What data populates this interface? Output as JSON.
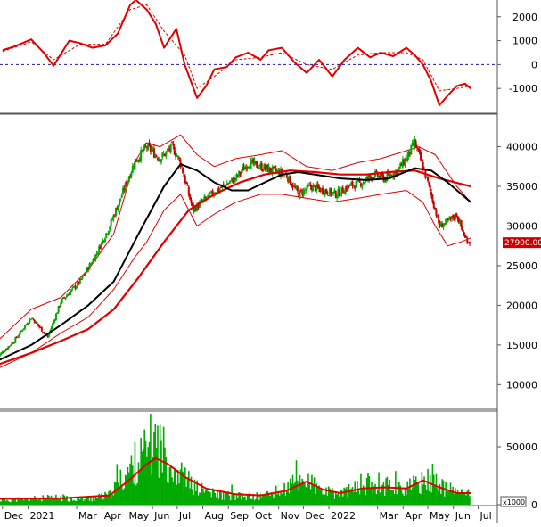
{
  "colors": {
    "up": "#00aa00",
    "down": "#cc0000",
    "ma_slow": "#e00000",
    "ma_fast": "#000000",
    "bollinger": "#dd0000",
    "volume_bar": "#00aa00",
    "volume_ma": "#e00000",
    "price_tag_bg": "#cc0000",
    "price_tag_text": "#ffffff"
  },
  "chart_data": [
    {
      "type": "line",
      "panel": "indicator",
      "y_ticks": [
        2000,
        1000,
        0,
        -1000
      ],
      "y_tick_labels": [
        "2000",
        "1000",
        "0",
        "-1000"
      ],
      "ylim": [
        -2000,
        2700
      ],
      "zero_line": "dashed",
      "series": [
        {
          "style": "solid",
          "x": [
            "2020-12-01",
            "2020-12-15",
            "2021-01-05",
            "2021-01-20",
            "2021-02-01",
            "2021-02-20",
            "2021-03-05",
            "2021-03-20",
            "2021-04-05",
            "2021-04-20",
            "2021-05-05",
            "2021-05-12",
            "2021-05-25",
            "2021-06-05",
            "2021-06-15",
            "2021-06-30",
            "2021-07-10",
            "2021-07-25",
            "2021-08-05",
            "2021-08-15",
            "2021-08-30",
            "2021-09-10",
            "2021-09-25",
            "2021-10-10",
            "2021-10-20",
            "2021-11-05",
            "2021-11-20",
            "2021-12-05",
            "2021-12-20",
            "2022-01-05",
            "2022-01-20",
            "2022-02-05",
            "2022-02-20",
            "2022-03-05",
            "2022-03-20",
            "2022-04-05",
            "2022-04-15",
            "2022-04-25",
            "2022-05-05",
            "2022-05-15",
            "2022-05-25",
            "2022-06-05",
            "2022-06-15",
            "2022-06-22"
          ],
          "values": [
            600,
            750,
            1050,
            500,
            -50,
            1000,
            900,
            700,
            800,
            1300,
            2500,
            2700,
            2300,
            1700,
            700,
            1500,
            0,
            -1400,
            -900,
            -200,
            -100,
            300,
            500,
            200,
            600,
            700,
            100,
            -350,
            200,
            -500,
            200,
            700,
            300,
            500,
            350,
            700,
            400,
            0,
            -700,
            -1700,
            -1300,
            -900,
            -800,
            -1000
          ]
        },
        {
          "style": "dashed",
          "x": [
            "2020-12-01",
            "2021-01-05",
            "2021-02-01",
            "2021-03-05",
            "2021-04-05",
            "2021-05-05",
            "2021-05-25",
            "2021-06-15",
            "2021-07-10",
            "2021-07-25",
            "2021-08-15",
            "2021-09-10",
            "2021-10-10",
            "2021-11-05",
            "2021-12-05",
            "2022-01-05",
            "2022-02-05",
            "2022-03-05",
            "2022-04-05",
            "2022-04-25",
            "2022-05-15",
            "2022-06-05",
            "2022-06-22"
          ],
          "values": [
            550,
            950,
            200,
            850,
            850,
            2300,
            2500,
            1400,
            400,
            -1000,
            -500,
            200,
            300,
            500,
            0,
            -200,
            400,
            500,
            500,
            200,
            -1100,
            -1000,
            -900
          ]
        }
      ]
    },
    {
      "type": "candlestick",
      "panel": "price",
      "y_ticks": [
        40000,
        35000,
        30000,
        25000,
        20000,
        15000,
        10000
      ],
      "y_tick_labels": [
        "40000",
        "35000",
        "30000",
        "25000",
        "20000",
        "15000",
        "10000"
      ],
      "ylim": [
        7000,
        44000
      ],
      "last_price_label": "27900.00",
      "last_price": 27900,
      "close_path": {
        "x": [
          "2020-11-25",
          "2020-12-15",
          "2021-01-05",
          "2021-01-25",
          "2021-02-10",
          "2021-03-05",
          "2021-03-25",
          "2021-04-10",
          "2021-04-25",
          "2021-05-10",
          "2021-05-25",
          "2021-06-10",
          "2021-06-25",
          "2021-07-05",
          "2021-07-20",
          "2021-08-05",
          "2021-08-25",
          "2021-09-10",
          "2021-09-25",
          "2021-10-10",
          "2021-10-25",
          "2021-11-10",
          "2021-11-25",
          "2021-12-10",
          "2021-12-25",
          "2022-01-10",
          "2022-01-25",
          "2022-02-10",
          "2022-02-25",
          "2022-03-10",
          "2022-03-25",
          "2022-04-05",
          "2022-04-15",
          "2022-04-25",
          "2022-05-05",
          "2022-05-15",
          "2022-05-25",
          "2022-06-05",
          "2022-06-15",
          "2022-06-22"
        ],
        "values": [
          13500,
          15500,
          18500,
          16000,
          20500,
          23000,
          26500,
          30000,
          34000,
          38000,
          40000,
          38500,
          40000,
          38000,
          32000,
          33500,
          35000,
          36000,
          38000,
          37500,
          37000,
          36500,
          34000,
          35000,
          34500,
          34000,
          35000,
          35500,
          36500,
          36000,
          37000,
          38500,
          40500,
          37500,
          34000,
          30000,
          30500,
          31500,
          28500,
          27900
        ]
      },
      "ma_slow": {
        "x": [
          "2020-11-25",
          "2021-01-05",
          "2021-02-10",
          "2021-03-15",
          "2021-04-15",
          "2021-05-15",
          "2021-06-15",
          "2021-07-15",
          "2021-08-15",
          "2021-09-15",
          "2021-10-15",
          "2021-11-15",
          "2021-12-15",
          "2022-01-15",
          "2022-02-15",
          "2022-03-15",
          "2022-04-15",
          "2022-05-15",
          "2022-06-22"
        ],
        "values": [
          12500,
          14000,
          15500,
          17000,
          19500,
          23500,
          28000,
          32000,
          34000,
          35500,
          36500,
          37000,
          36800,
          36500,
          36500,
          36800,
          37000,
          36000,
          35000
        ]
      },
      "ma_fast": {
        "x": [
          "2020-11-25",
          "2021-01-05",
          "2021-02-10",
          "2021-03-15",
          "2021-04-15",
          "2021-05-15",
          "2021-06-15",
          "2021-07-05",
          "2021-07-25",
          "2021-08-15",
          "2021-09-05",
          "2021-09-25",
          "2021-10-15",
          "2021-11-05",
          "2021-11-25",
          "2021-12-15",
          "2022-01-15",
          "2022-02-15",
          "2022-03-15",
          "2022-04-15",
          "2022-05-05",
          "2022-05-25",
          "2022-06-22"
        ],
        "values": [
          13000,
          15000,
          17500,
          20000,
          23000,
          29000,
          35000,
          37800,
          37000,
          35500,
          34500,
          34500,
          35500,
          36500,
          36800,
          36500,
          36000,
          35800,
          36000,
          37300,
          37000,
          35500,
          33000
        ]
      },
      "bollinger_upper": {
        "x": [
          "2020-11-25",
          "2021-01-05",
          "2021-02-10",
          "2021-03-15",
          "2021-04-15",
          "2021-05-10",
          "2021-05-25",
          "2021-06-10",
          "2021-07-05",
          "2021-07-25",
          "2021-08-15",
          "2021-09-10",
          "2021-10-10",
          "2021-11-05",
          "2021-12-05",
          "2022-01-05",
          "2022-02-05",
          "2022-03-05",
          "2022-04-05",
          "2022-04-20",
          "2022-05-10",
          "2022-06-05",
          "2022-06-22"
        ],
        "values": [
          15500,
          19500,
          21000,
          24500,
          29000,
          38000,
          40500,
          40000,
          41500,
          39000,
          37500,
          38500,
          39000,
          39500,
          37500,
          37000,
          38000,
          38500,
          39500,
          40000,
          39000,
          35000,
          33000
        ]
      },
      "bollinger_lower": {
        "x": [
          "2020-11-25",
          "2021-01-05",
          "2021-02-10",
          "2021-03-15",
          "2021-04-15",
          "2021-05-10",
          "2021-05-25",
          "2021-06-15",
          "2021-07-05",
          "2021-07-25",
          "2021-08-15",
          "2021-09-10",
          "2021-10-10",
          "2021-11-05",
          "2021-12-05",
          "2022-01-05",
          "2022-02-05",
          "2022-03-05",
          "2022-04-05",
          "2022-04-25",
          "2022-05-10",
          "2022-05-25",
          "2022-06-10",
          "2022-06-22"
        ],
        "values": [
          12000,
          14000,
          16500,
          18500,
          22000,
          26000,
          28000,
          32000,
          34000,
          30000,
          31500,
          33000,
          34000,
          34000,
          33500,
          33000,
          33500,
          34000,
          34500,
          33000,
          30000,
          27500,
          28000,
          28500
        ]
      }
    },
    {
      "type": "bar",
      "panel": "volume",
      "y_ticks": [
        50000,
        0
      ],
      "y_tick_labels": [
        "50000",
        "0"
      ],
      "ylim": [
        0,
        80000
      ],
      "unit_label": "x1000",
      "profile": {
        "x": [
          "2020-11-25",
          "2021-01-05",
          "2021-02-10",
          "2021-03-15",
          "2021-04-10",
          "2021-04-25",
          "2021-05-10",
          "2021-05-25",
          "2021-06-05",
          "2021-06-15",
          "2021-06-25",
          "2021-07-10",
          "2021-07-25",
          "2021-08-15",
          "2021-09-10",
          "2021-10-10",
          "2021-11-05",
          "2021-11-20",
          "2021-12-05",
          "2021-12-20",
          "2022-01-10",
          "2022-02-05",
          "2022-02-25",
          "2022-03-15",
          "2022-04-05",
          "2022-04-20",
          "2022-05-05",
          "2022-05-20",
          "2022-06-10",
          "2022-06-22"
        ],
        "values": [
          4000,
          5000,
          6000,
          4500,
          8000,
          22000,
          35000,
          45000,
          55000,
          45000,
          35000,
          22000,
          14000,
          9000,
          7000,
          7000,
          12000,
          18000,
          22000,
          12000,
          9000,
          14000,
          20000,
          16000,
          14000,
          18000,
          22000,
          14000,
          10000,
          9000
        ]
      },
      "ma": {
        "x": [
          "2020-11-25",
          "2021-02-10",
          "2021-04-10",
          "2021-05-05",
          "2021-05-25",
          "2021-06-05",
          "2021-06-20",
          "2021-07-10",
          "2021-08-05",
          "2021-09-10",
          "2021-10-10",
          "2021-11-10",
          "2021-12-05",
          "2021-12-25",
          "2022-01-15",
          "2022-02-10",
          "2022-03-10",
          "2022-04-05",
          "2022-04-25",
          "2022-05-15",
          "2022-06-05",
          "2022-06-22"
        ],
        "values": [
          5000,
          5500,
          8000,
          22000,
          35000,
          40000,
          35000,
          24000,
          14000,
          9000,
          8000,
          12000,
          20000,
          13000,
          10000,
          14000,
          15000,
          14000,
          21000,
          15000,
          10000,
          10000
        ]
      }
    }
  ],
  "x_axis": {
    "labels": [
      {
        "text": "Dec",
        "date": "2020-12-01"
      },
      {
        "text": "2021",
        "date": "2021-01-01"
      },
      {
        "text": "Mar",
        "date": "2021-03-01"
      },
      {
        "text": "Apr",
        "date": "2021-04-01"
      },
      {
        "text": "May",
        "date": "2021-05-01"
      },
      {
        "text": "Jun",
        "date": "2021-06-01"
      },
      {
        "text": "Jul",
        "date": "2021-07-01"
      },
      {
        "text": "Aug",
        "date": "2021-08-01"
      },
      {
        "text": "Sep",
        "date": "2021-09-01"
      },
      {
        "text": "Oct",
        "date": "2021-10-01"
      },
      {
        "text": "Nov",
        "date": "2021-11-01"
      },
      {
        "text": "Dec",
        "date": "2021-12-01"
      },
      {
        "text": "2022",
        "date": "2022-01-01"
      },
      {
        "text": "Mar",
        "date": "2022-03-01"
      },
      {
        "text": "Apr",
        "date": "2022-04-01"
      },
      {
        "text": "May",
        "date": "2022-05-01"
      },
      {
        "text": "Jun",
        "date": "2022-06-01"
      },
      {
        "text": "Jul",
        "date": "2022-07-01"
      }
    ]
  }
}
